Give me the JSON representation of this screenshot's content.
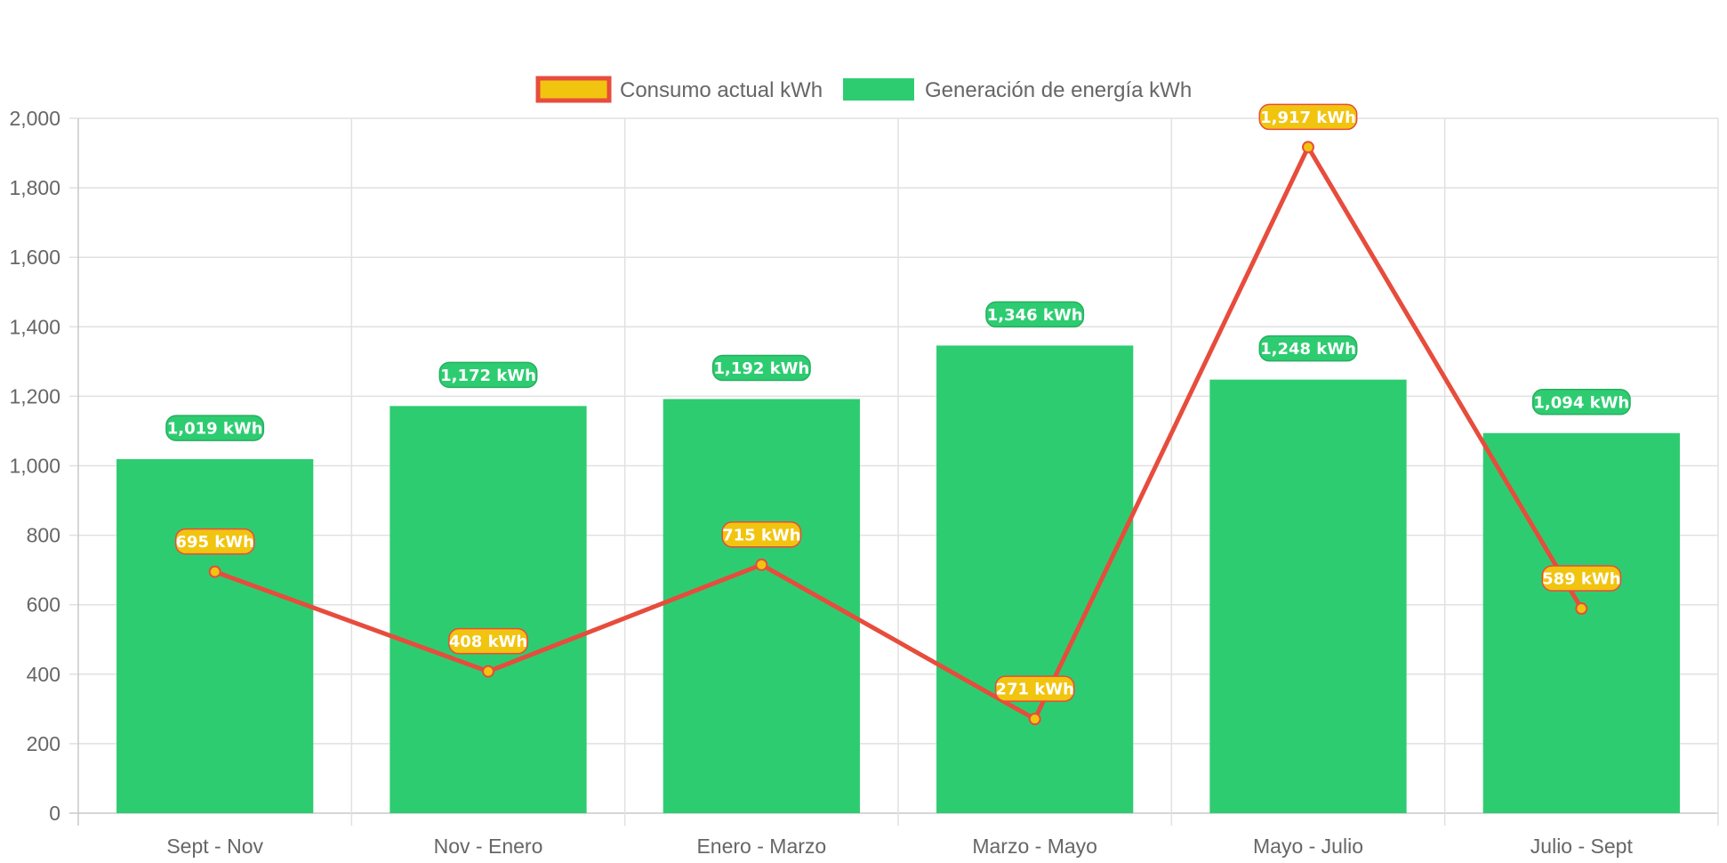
{
  "chart_data": {
    "type": "bar",
    "categories": [
      "Sept - Nov",
      "Nov - Enero",
      "Enero - Marzo",
      "Marzo - Mayo",
      "Mayo - Julio",
      "Julio - Sept"
    ],
    "series": [
      {
        "name": "Consumo actual kWh",
        "type": "line",
        "values": [
          695,
          408,
          715,
          271,
          1917,
          589
        ],
        "labels": [
          "695 kWh",
          "408 kWh",
          "715 kWh",
          "271 kWh",
          "1,917 kWh",
          "589 kWh"
        ],
        "color": "#e74c3c",
        "fill_color": "#f1c40f"
      },
      {
        "name": "Generación de energía kWh",
        "type": "bar",
        "values": [
          1019,
          1172,
          1192,
          1346,
          1248,
          1094
        ],
        "labels": [
          "1,019 kWh",
          "1,172 kWh",
          "1,192 kWh",
          "1,346 kWh",
          "1,248 kWh",
          "1,094 kWh"
        ],
        "color": "#2ecc71"
      }
    ],
    "ylim": [
      0,
      2000
    ],
    "y_ticks": [
      "0",
      "200",
      "400",
      "600",
      "800",
      "1,000",
      "1,200",
      "1,400",
      "1,600",
      "1,800",
      "2,000"
    ],
    "grid": true,
    "legend_position": "top-center"
  }
}
